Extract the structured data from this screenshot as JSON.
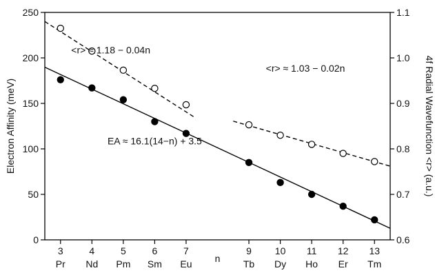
{
  "chart_data": {
    "type": "scatter",
    "x_ticks": [
      3,
      4,
      5,
      6,
      7,
      9,
      10,
      11,
      12,
      13
    ],
    "x_tick_labels": [
      "3",
      "4",
      "5",
      "6",
      "7",
      "9",
      "10",
      "11",
      "12",
      "13"
    ],
    "element_labels": [
      "Pr",
      "Nd",
      "Pm",
      "Sm",
      "Eu",
      "Tb",
      "Dy",
      "Ho",
      "Er",
      "Tm"
    ],
    "x_gap_label": "n",
    "xlim": [
      2.5,
      13.5
    ],
    "left_axis": {
      "label": "Electron Affinity (meV)",
      "ylim": [
        0,
        250
      ],
      "ticks": [
        0,
        50,
        100,
        150,
        200,
        250
      ]
    },
    "right_axis": {
      "label": "4f Radial Wavefunction <r> (a.u.)",
      "ylim": [
        0.6,
        1.1
      ],
      "ticks": [
        0.6,
        0.7,
        0.8,
        0.9,
        1.0,
        1.1
      ],
      "tick_labels": [
        "0.6",
        "0.7",
        "0.8",
        "0.9",
        "1.0",
        "1.1"
      ]
    },
    "series": [
      {
        "marker": "filled-circle",
        "axis": "left",
        "x": [
          3,
          4,
          5,
          6,
          7,
          9,
          10,
          11,
          12,
          13
        ],
        "y": [
          176,
          167,
          154,
          130,
          117,
          85,
          63,
          50,
          37,
          22
        ]
      },
      {
        "marker": "open-circle",
        "axis": "right",
        "x": [
          3,
          4,
          5,
          6,
          7,
          9,
          10,
          11,
          12,
          13
        ],
        "y": [
          1.065,
          1.015,
          0.973,
          0.933,
          0.897,
          0.853,
          0.83,
          0.81,
          0.79,
          0.772
        ]
      }
    ],
    "fit_lines": [
      {
        "style": "solid",
        "axis": "left",
        "x": [
          2.5,
          13.5
        ],
        "y": [
          189.8,
          12.7
        ]
      },
      {
        "style": "dashed",
        "axis": "right",
        "x": [
          2.5,
          7.3
        ],
        "y": [
          1.08,
          0.868
        ]
      },
      {
        "style": "dashed",
        "axis": "right",
        "x": [
          8.5,
          13.5
        ],
        "y": [
          0.861,
          0.762
        ]
      }
    ],
    "annotations": [
      {
        "text": "<r> ≈ 1.18 − 0.04n",
        "x": 4.6,
        "y_left": 205
      },
      {
        "text": "<r> ≈ 1.03 − 0.02n",
        "x": 10.8,
        "y_left": 185
      },
      {
        "text": "EA ≈ 16.1(14−n) + 3.5",
        "x": 6.0,
        "y_left": 105
      }
    ],
    "grid": false,
    "legend": "none"
  }
}
